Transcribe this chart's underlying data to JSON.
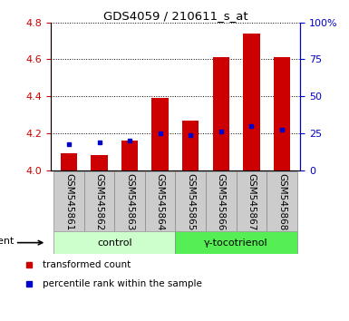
{
  "title": "GDS4059 / 210611_s_at",
  "samples": [
    "GSM545861",
    "GSM545862",
    "GSM545863",
    "GSM545864",
    "GSM545865",
    "GSM545866",
    "GSM545867",
    "GSM545868"
  ],
  "red_values": [
    4.09,
    4.08,
    4.16,
    4.39,
    4.27,
    4.61,
    4.74,
    4.61
  ],
  "blue_values": [
    4.14,
    4.15,
    4.16,
    4.2,
    4.19,
    4.21,
    4.24,
    4.22
  ],
  "ylim_left": [
    4.0,
    4.8
  ],
  "ylim_right": [
    0,
    100
  ],
  "yticks_left": [
    4.0,
    4.2,
    4.4,
    4.6,
    4.8
  ],
  "yticks_right": [
    0,
    25,
    50,
    75,
    100
  ],
  "ytick_labels_right": [
    "0",
    "25",
    "50",
    "75",
    "100%"
  ],
  "groups": [
    {
      "label": "control",
      "indices": [
        0,
        1,
        2,
        3
      ],
      "color": "#ccffcc"
    },
    {
      "label": "γ-tocotrienol",
      "indices": [
        4,
        5,
        6,
        7
      ],
      "color": "#55ee55"
    }
  ],
  "agent_label": "agent",
  "legend_red": "transformed count",
  "legend_blue": "percentile rank within the sample",
  "bar_width": 0.55,
  "red_color": "#cc0000",
  "blue_color": "#0000cc",
  "label_bg_color": "#cccccc",
  "label_edge_color": "#888888"
}
